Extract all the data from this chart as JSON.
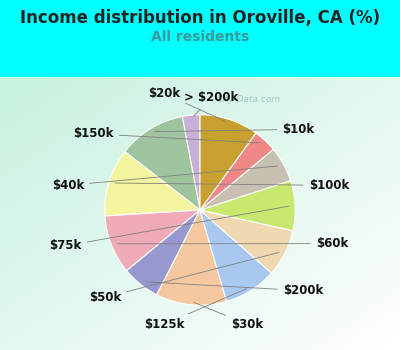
{
  "title": "Income distribution in Oroville, CA (%)",
  "subtitle": "All residents",
  "background_color": "#00FFFF",
  "watermark": "City-Data.com",
  "labels": [
    "> $200k",
    "$10k",
    "$100k",
    "$60k",
    "$200k",
    "$30k",
    "$125k",
    "$50k",
    "$75k",
    "$40k",
    "$150k",
    "$20k"
  ],
  "values": [
    3.0,
    11.5,
    11.5,
    10.0,
    6.5,
    12.0,
    9.0,
    8.0,
    8.5,
    6.0,
    4.0,
    10.0
  ],
  "colors": [
    "#c8b0d8",
    "#9ec49e",
    "#f5f5a0",
    "#f0aab8",
    "#9898d0",
    "#f5c8a0",
    "#a8c8f0",
    "#f0d8b0",
    "#c8e870",
    "#c8c0b0",
    "#f08888",
    "#c8a030"
  ],
  "startangle": 90,
  "label_fontsize": 8.5,
  "title_fontsize": 12,
  "subtitle_fontsize": 10,
  "title_color": "#222222",
  "subtitle_color": "#3a9a9a",
  "label_color": "#111111"
}
